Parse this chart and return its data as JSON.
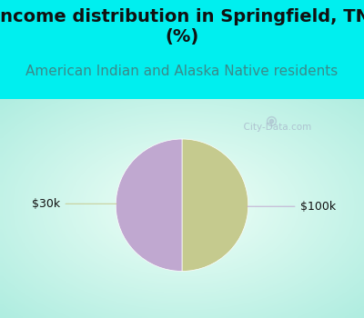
{
  "title_line1": "Income distribution in Springfield, TN",
  "title_line2": "(%)",
  "subtitle": "American Indian and Alaska Native residents",
  "slices": [
    50.0,
    50.0
  ],
  "slice_colors": [
    "#c5ca8e",
    "#c0a8d0"
  ],
  "label_left": "$30k",
  "label_right": "$100k",
  "line_color_left": "#c5ca8e",
  "line_color_right": "#c0a8d0",
  "background_color_top": "#00efef",
  "title_fontsize": 14,
  "subtitle_fontsize": 11,
  "subtitle_color": "#3a8a8a",
  "label_fontsize": 9,
  "watermark": "  City-Data.com",
  "watermark_color": "#aabbcc"
}
